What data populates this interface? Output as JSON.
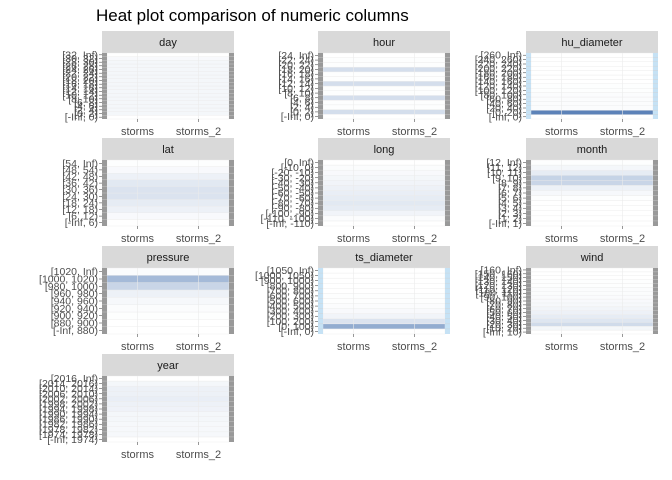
{
  "title": "Heat plot comparison of numeric columns",
  "chart_data": {
    "type": "heatmap",
    "title": "Heat plot comparison of numeric columns",
    "x_categories": [
      "storms",
      "storms_2"
    ],
    "facets": [
      {
        "name": "day",
        "bins": [
          "[-Inf, 0)",
          "[0, 2)",
          "[2, 4)",
          "[4, 6)",
          "[6, 8)",
          "[8, 10)",
          "[10, 12)",
          "[12, 14)",
          "[14, 16)",
          "[16, 18)",
          "[18, 20)",
          "[20, 22)",
          "[22, 24)",
          "[24, 26)",
          "[26, 28)",
          "[28, 30)",
          "[30, 32)",
          "[32, Inf)"
        ],
        "values": [
          0.0,
          0.06,
          0.06,
          0.06,
          0.06,
          0.06,
          0.06,
          0.06,
          0.06,
          0.06,
          0.06,
          0.06,
          0.06,
          0.06,
          0.06,
          0.06,
          0.04,
          0.0
        ]
      },
      {
        "name": "hour",
        "bins": [
          "[-Inf, 0)",
          "[0, 2)",
          "[2, 4)",
          "[4, 6)",
          "[6, 8)",
          "[8, 10)",
          "[10, 12)",
          "[12, 14)",
          "[14, 16)",
          "[16, 18)",
          "[18, 20)",
          "[20, 22)",
          "[22, 24)",
          "[24, Inf)"
        ],
        "values": [
          0.0,
          0.24,
          0.01,
          0.01,
          0.24,
          0.01,
          0.01,
          0.24,
          0.01,
          0.01,
          0.24,
          0.01,
          0.01,
          0.0
        ]
      },
      {
        "name": "hu_diameter",
        "bins": [
          "[-Inf, 0)",
          "[0, 20)",
          "[20, 40)",
          "[40, 60)",
          "[60, 80)",
          "[80, 100)",
          "[100, 120)",
          "[120, 140)",
          "[140, 160)",
          "[160, 180)",
          "[180, 200)",
          "[200, 220)",
          "[220, 240)",
          "[240, 260)",
          "[260, Inf)"
        ],
        "values": [
          0.0,
          0.9,
          0.02,
          0.02,
          0.02,
          0.02,
          0.01,
          0.01,
          0.0,
          0.0,
          0.0,
          0.0,
          0.0,
          0.0,
          0.0
        ]
      },
      {
        "name": "lat",
        "bins": [
          "[-Inf, 6)",
          "[6, 12)",
          "[12, 18)",
          "[18, 24)",
          "[24, 30)",
          "[30, 36)",
          "[36, 42)",
          "[42, 48)",
          "[48, 54)",
          "[54, Inf)"
        ],
        "values": [
          0.0,
          0.04,
          0.1,
          0.14,
          0.2,
          0.2,
          0.16,
          0.1,
          0.04,
          0.01
        ]
      },
      {
        "name": "long",
        "bins": [
          "[-Inf, -110)",
          "[-110, -100)",
          "[-100, -90)",
          "[-90, -80)",
          "[-80, -70)",
          "[-70, -60)",
          "[-60, -50)",
          "[-50, -40)",
          "[-40, -30)",
          "[-30, -20)",
          "[-20, -10)",
          "[-10, 0)",
          "[0, Inf)"
        ],
        "values": [
          0.0,
          0.02,
          0.08,
          0.14,
          0.16,
          0.14,
          0.12,
          0.1,
          0.08,
          0.06,
          0.04,
          0.02,
          0.0
        ]
      },
      {
        "name": "month",
        "bins": [
          "[-Inf, 1)",
          "[1, 2)",
          "[2, 3)",
          "[3, 4)",
          "[4, 5)",
          "[5, 6)",
          "[6, 7)",
          "[7, 8)",
          "[8, 9)",
          "[9, 10)",
          "[10, 11)",
          "[11, 12)",
          "[12, Inf)"
        ],
        "values": [
          0.0,
          0.0,
          0.0,
          0.0,
          0.0,
          0.01,
          0.05,
          0.1,
          0.3,
          0.32,
          0.14,
          0.06,
          0.01
        ]
      },
      {
        "name": "pressure",
        "bins": [
          "[-Inf, 880)",
          "[880, 900)",
          "[900, 920)",
          "[920, 940)",
          "[940, 960)",
          "[960, 980)",
          "[980, 1000)",
          "[1000, 1020)",
          "[1020, Inf)"
        ],
        "values": [
          0.0,
          0.0,
          0.01,
          0.02,
          0.05,
          0.1,
          0.3,
          0.5,
          0.02
        ]
      },
      {
        "name": "ts_diameter",
        "bins": [
          "[-Inf, 0)",
          "[0, 100)",
          "[100, 200)",
          "[200, 300)",
          "[300, 400)",
          "[400, 500)",
          "[500, 600)",
          "[600, 700)",
          "[700, 800)",
          "[800, 900)",
          "[900, 1000)",
          "[1000, 1050)",
          "[1050, Inf)"
        ],
        "values": [
          0.0,
          0.6,
          0.2,
          0.08,
          0.04,
          0.02,
          0.01,
          0.01,
          0.0,
          0.0,
          0.0,
          0.0,
          0.0
        ]
      },
      {
        "name": "wind",
        "bins": [
          "[-Inf, 10)",
          "[10, 20)",
          "[20, 30)",
          "[30, 40)",
          "[40, 50)",
          "[50, 60)",
          "[60, 70)",
          "[70, 80)",
          "[80, 90)",
          "[90, 100)",
          "[100, 110)",
          "[110, 120)",
          "[120, 130)",
          "[130, 140)",
          "[140, 150)",
          "[150, 160)",
          "[160, Inf)"
        ],
        "values": [
          0.0,
          0.06,
          0.26,
          0.18,
          0.14,
          0.1,
          0.07,
          0.05,
          0.04,
          0.03,
          0.02,
          0.02,
          0.01,
          0.01,
          0.0,
          0.0,
          0.0
        ]
      },
      {
        "name": "year",
        "bins": [
          "[-Inf, 1974)",
          "[1974, 1978)",
          "[1978, 1982)",
          "[1982, 1986)",
          "[1986, 1990)",
          "[1990, 1994)",
          "[1994, 1998)",
          "[1998, 2002)",
          "[2002, 2006)",
          "[2006, 2010)",
          "[2010, 2014)",
          "[2014, 2016)",
          "[2016, Inf)"
        ],
        "values": [
          0.0,
          0.05,
          0.05,
          0.05,
          0.06,
          0.06,
          0.09,
          0.1,
          0.12,
          0.1,
          0.1,
          0.06,
          0.0
        ]
      }
    ],
    "color_scale": {
      "low": "#ffffff",
      "high": "#4a74b0"
    },
    "legend": "none",
    "grid": true
  },
  "colors": {
    "strip_background": "#d9d9d9",
    "side_bar": "#999999",
    "side_bar_highlight": "#c6e2f5",
    "grid": "#ebebeb"
  }
}
